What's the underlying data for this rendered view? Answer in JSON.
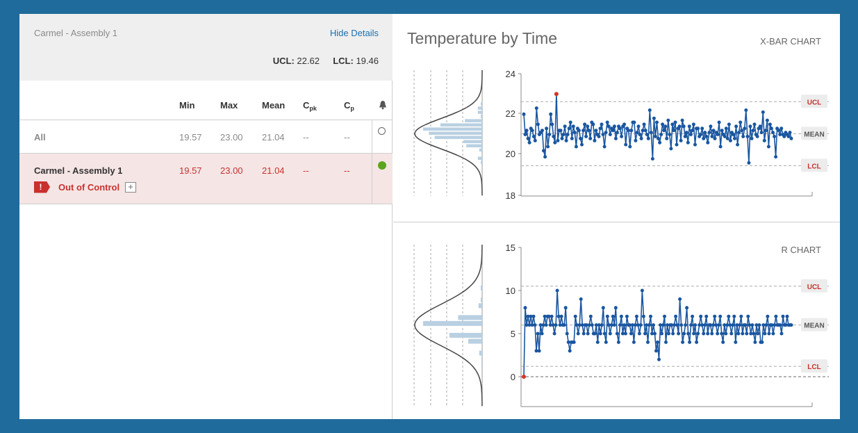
{
  "header": {
    "station": "Carmel - Assembly 1",
    "hide_details": "Hide Details",
    "ucl_label": "UCL:",
    "ucl_value": "22.62",
    "lcl_label": "LCL:",
    "lcl_value": "19.46"
  },
  "table": {
    "columns": {
      "min": "Min",
      "max": "Max",
      "mean": "Mean",
      "cpk_main": "C",
      "cpk_sub": "pk",
      "cp_main": "C",
      "cp_sub": "p"
    },
    "rows": [
      {
        "name": "All",
        "min": "19.57",
        "max": "23.00",
        "mean": "21.04",
        "cpk": "--",
        "cp": "--"
      },
      {
        "name": "Carmel - Assembly 1",
        "min": "19.57",
        "max": "23.00",
        "mean": "21.04",
        "cpk": "--",
        "cp": "--",
        "status": "Out of Control",
        "status_flag": "!",
        "expand": "+"
      }
    ]
  },
  "chart_title": "Temperature by Time",
  "chart_data": [
    {
      "type": "line",
      "name": "X-BAR CHART",
      "ylim": [
        18,
        24
      ],
      "yticks": [
        "24",
        "22",
        "20",
        "18"
      ],
      "limits": {
        "ucl": 22.62,
        "mean": 21.04,
        "lcl": 19.46
      },
      "limit_labels": [
        "UCL",
        "MEAN",
        "LCL"
      ],
      "out_of_control_index": 23,
      "values": [
        22.0,
        21.0,
        21.2,
        20.8,
        20.6,
        21.3,
        21.2,
        20.9,
        20.7,
        22.3,
        21.5,
        21.0,
        21.1,
        21.2,
        20.2,
        19.9,
        21.3,
        20.4,
        21.0,
        22.0,
        21.5,
        20.9,
        20.6,
        23.0,
        20.7,
        21.2,
        21.2,
        20.8,
        21.0,
        21.4,
        20.7,
        21.0,
        21.3,
        21.6,
        20.8,
        21.4,
        21.1,
        20.4,
        21.3,
        21.2,
        20.8,
        20.5,
        21.2,
        21.5,
        20.9,
        21.4,
        21.2,
        20.8,
        21.6,
        21.5,
        20.7,
        21.2,
        21.0,
        20.9,
        21.3,
        21.5,
        21.0,
        20.4,
        21.1,
        21.6,
        21.4,
        21.0,
        21.3,
        21.2,
        21.4,
        20.8,
        21.1,
        21.4,
        21.3,
        20.9,
        21.4,
        21.5,
        20.5,
        21.3,
        21.2,
        20.4,
        21.2,
        21.6,
        21.6,
        20.7,
        21.1,
        21.4,
        21.0,
        20.8,
        21.2,
        21.5,
        21.2,
        21.0,
        20.8,
        22.2,
        21.1,
        19.8,
        21.8,
        20.9,
        21.6,
        20.8,
        20.6,
        21.0,
        21.5,
        21.2,
        21.4,
        20.8,
        21.7,
        21.0,
        20.3,
        21.5,
        21.2,
        21.6,
        20.5,
        21.3,
        21.4,
        20.7,
        21.7,
        21.4,
        20.9,
        21.1,
        20.6,
        21.4,
        21.0,
        21.2,
        21.5,
        20.5,
        21.3,
        21.3,
        20.9,
        21.0,
        21.3,
        20.8,
        21.1,
        20.9,
        20.6,
        21.1,
        21.4,
        20.9,
        21.2,
        20.8,
        21.1,
        21.0,
        21.6,
        20.4,
        21.2,
        21.0,
        20.9,
        21.3,
        20.8,
        21.5,
        20.7,
        21.1,
        21.0,
        20.8,
        21.4,
        20.5,
        21.1,
        21.6,
        21.2,
        20.9,
        21.3,
        22.2,
        20.9,
        19.6,
        21.4,
        20.8,
        21.2,
        21.5,
        21.0,
        20.9,
        21.3,
        21.4,
        21.1,
        22.1,
        20.7,
        21.2,
        21.7,
        20.4,
        21.5,
        21.3,
        21.1,
        20.9,
        19.9,
        21.3,
        21.2,
        21.0,
        21.3,
        21.0,
        20.9,
        21.1,
        21.0,
        20.9,
        21.1,
        20.8
      ]
    },
    {
      "type": "line",
      "name": "R CHART",
      "ylim": [
        -3,
        15
      ],
      "yticks": [
        "15",
        "10",
        "5",
        "0"
      ],
      "limits": {
        "ucl": 10.5,
        "mean": 6.0,
        "lcl": 1.2
      },
      "zero_line": 0,
      "limit_labels": [
        "UCL",
        "MEAN",
        "LCL"
      ],
      "out_of_control_index": 0,
      "values": [
        0,
        8,
        6,
        7,
        6,
        7,
        6,
        7,
        6,
        3,
        5,
        3,
        6,
        5,
        6,
        7,
        6,
        7,
        7,
        6,
        7,
        6,
        5,
        6,
        10,
        7,
        6,
        7,
        6,
        6,
        8,
        5,
        4,
        3,
        4,
        4,
        4,
        7,
        6,
        5,
        6,
        9,
        6,
        5,
        6,
        6,
        5,
        6,
        7,
        6,
        5,
        5,
        6,
        4,
        6,
        5,
        6,
        8,
        5,
        4,
        7,
        6,
        5,
        6,
        7,
        6,
        8,
        5,
        4,
        6,
        7,
        5,
        6,
        5,
        7,
        6,
        6,
        5,
        6,
        4,
        6,
        7,
        6,
        5,
        6,
        10,
        7,
        5,
        6,
        4,
        6,
        7,
        5,
        6,
        5,
        3,
        4,
        2,
        6,
        5,
        6,
        7,
        4,
        6,
        5,
        6,
        6,
        5,
        6,
        7,
        6,
        5,
        9,
        6,
        4,
        5,
        6,
        8,
        5,
        4,
        6,
        7,
        5,
        6,
        4,
        5,
        6,
        7,
        6,
        5,
        6,
        7,
        5,
        6,
        6,
        5,
        6,
        7,
        6,
        5,
        6,
        7,
        5,
        4,
        6,
        5,
        6,
        7,
        6,
        5,
        6,
        7,
        4,
        6,
        5,
        6,
        7,
        5,
        6,
        6,
        5,
        7,
        6,
        5,
        6,
        5,
        4,
        6,
        5,
        6,
        4,
        4,
        6,
        5,
        6,
        7,
        5,
        6,
        6,
        5,
        6,
        7,
        6,
        6,
        6,
        5,
        7,
        6,
        6,
        7,
        6,
        6,
        6
      ]
    }
  ]
}
